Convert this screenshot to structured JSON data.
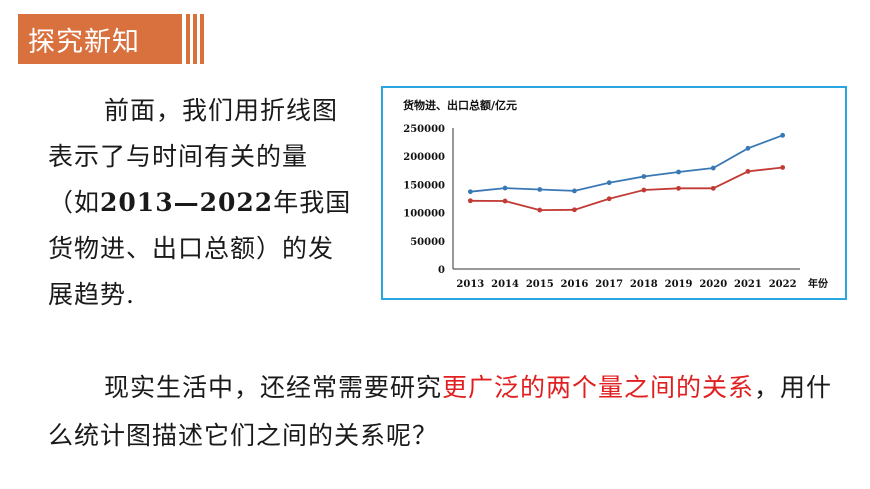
{
  "header": {
    "title": "探究新知",
    "accent_color": "#d9713f"
  },
  "intro": {
    "part1": "前面，我们用折线图表示了与时间有关的量（如",
    "year_span": "2013—2022",
    "part2": "年我国货物进、出口总额）的发展趋势."
  },
  "question": {
    "part1": "现实生活中，还经常需要研究",
    "highlight": "更广泛的两个量之间的关系",
    "part2": "，用什么统计图描述它们之间的关系呢？",
    "highlight_color": "#e02020"
  },
  "chart_data": {
    "type": "line",
    "title": "货物进、出口总额/亿元",
    "xlabel": "年份",
    "ylabel": "",
    "categories": [
      "2013",
      "2014",
      "2015",
      "2016",
      "2017",
      "2018",
      "2019",
      "2020",
      "2021",
      "2022"
    ],
    "yticks": [
      "0",
      "50000",
      "100000",
      "150000",
      "200000",
      "250000"
    ],
    "ylim": [
      0,
      250000
    ],
    "series": [
      {
        "color": "#3a78b5",
        "values": [
          137000,
          143500,
          141000,
          138500,
          153000,
          164000,
          172000,
          179000,
          214000,
          237000
        ]
      },
      {
        "color": "#c23a35",
        "values": [
          121000,
          120500,
          104500,
          105000,
          124500,
          140000,
          143000,
          143000,
          173000,
          180000
        ]
      }
    ],
    "grid": false,
    "legend": "none"
  }
}
